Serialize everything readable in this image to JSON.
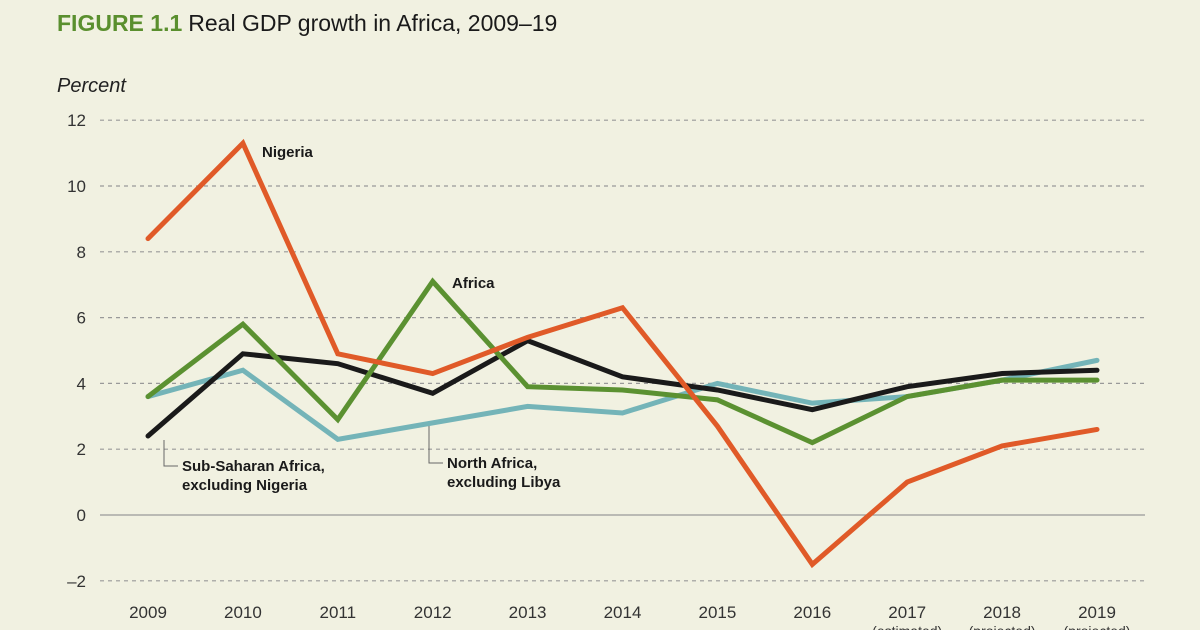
{
  "title": {
    "figure_label": "FIGURE 1.1",
    "text": "Real GDP growth in Africa, 2009–19"
  },
  "chart_data": {
    "type": "line",
    "title": "Real GDP growth in Africa, 2009–19",
    "ylabel": "Percent",
    "xlabel": "",
    "ylim": [
      -2,
      12
    ],
    "yticks": [
      -2,
      0,
      2,
      4,
      6,
      8,
      10,
      12
    ],
    "ytick_labels": [
      "–2",
      "0",
      "2",
      "4",
      "6",
      "8",
      "10",
      "12"
    ],
    "grid": "horizontal dashed",
    "categories": [
      "2009",
      "2010",
      "2011",
      "2012",
      "2013",
      "2014",
      "2015",
      "2016",
      "2017",
      "2018",
      "2019"
    ],
    "category_notes": [
      "",
      "",
      "",
      "",
      "",
      "",
      "",
      "",
      "(estimated)",
      "(projected)",
      "(projected)"
    ],
    "series": [
      {
        "name": "Nigeria",
        "color": "#e05a28",
        "values": [
          8.4,
          11.3,
          4.9,
          4.3,
          5.4,
          6.3,
          2.7,
          -1.5,
          1.0,
          2.1,
          2.6
        ]
      },
      {
        "name": "Africa",
        "color": "#5b9131",
        "values": [
          3.6,
          5.8,
          2.9,
          7.1,
          3.9,
          3.8,
          3.5,
          2.2,
          3.6,
          4.1,
          4.1
        ]
      },
      {
        "name": "Sub-Saharan Africa, excluding Nigeria",
        "color": "#1a1a1a",
        "values": [
          2.4,
          4.9,
          4.6,
          3.7,
          5.3,
          4.2,
          3.8,
          3.2,
          3.9,
          4.3,
          4.4
        ]
      },
      {
        "name": "North Africa, excluding Libya",
        "color": "#74b4b8",
        "values": [
          3.6,
          4.4,
          2.3,
          2.8,
          3.3,
          3.1,
          4.0,
          3.4,
          3.6,
          4.1,
          4.7
        ]
      }
    ],
    "annotations": {
      "nigeria": "Nigeria",
      "africa": "Africa",
      "ssa_line1": "Sub-Saharan Africa,",
      "ssa_line2": "excluding Nigeria",
      "na_line1": "North Africa,",
      "na_line2": "excluding Libya"
    },
    "legend": "inline labels"
  }
}
